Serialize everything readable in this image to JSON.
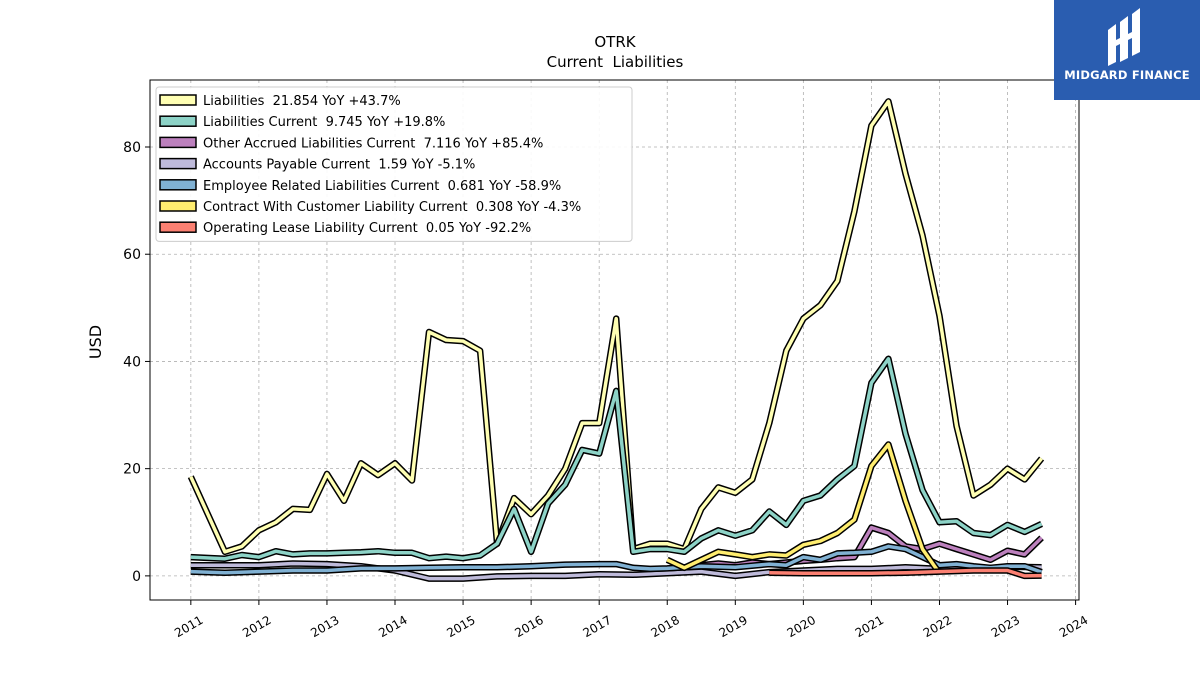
{
  "brand": {
    "name": "MIDGARD FINANCE",
    "bg_color": "#2a5db0"
  },
  "chart_data": {
    "type": "line",
    "title": "OTRK",
    "subtitle": "Current  Liabilities",
    "ylabel": "USD",
    "xlabel": "",
    "xlim": [
      2010.4,
      2024.05
    ],
    "ylim": [
      -4.5,
      92.5
    ],
    "yticks": [
      0,
      20,
      40,
      60,
      80
    ],
    "xticks": [
      2011,
      2012,
      2013,
      2014,
      2015,
      2016,
      2017,
      2018,
      2019,
      2020,
      2021,
      2022,
      2023,
      2024
    ],
    "grid": true,
    "legend_position": "top-left",
    "series": [
      {
        "name": "Liabilities",
        "legend": "Liabilities  21.854 YoY +43.7%",
        "color": "#ffffb3",
        "points": [
          [
            2011.0,
            18.5
          ],
          [
            2011.5,
            4.5
          ],
          [
            2011.75,
            5.5
          ],
          [
            2012.0,
            8.5
          ],
          [
            2012.25,
            10
          ],
          [
            2012.5,
            12.5
          ],
          [
            2012.75,
            12.3
          ],
          [
            2013.0,
            19
          ],
          [
            2013.25,
            14
          ],
          [
            2013.5,
            21
          ],
          [
            2013.75,
            18.8
          ],
          [
            2014.0,
            21
          ],
          [
            2014.25,
            17.8
          ],
          [
            2014.5,
            45.5
          ],
          [
            2014.75,
            44
          ],
          [
            2015.0,
            43.8
          ],
          [
            2015.25,
            42
          ],
          [
            2015.5,
            6
          ],
          [
            2015.75,
            14.5
          ],
          [
            2016.0,
            11.5
          ],
          [
            2016.25,
            15
          ],
          [
            2016.5,
            20
          ],
          [
            2016.75,
            28.5
          ],
          [
            2017.0,
            28.5
          ],
          [
            2017.25,
            48
          ],
          [
            2017.5,
            5
          ],
          [
            2017.75,
            6
          ],
          [
            2018.0,
            6
          ],
          [
            2018.25,
            5
          ],
          [
            2018.5,
            12.5
          ],
          [
            2018.75,
            16.5
          ],
          [
            2019.0,
            15.5
          ],
          [
            2019.25,
            18
          ],
          [
            2019.5,
            28.5
          ],
          [
            2019.75,
            42
          ],
          [
            2020.0,
            48
          ],
          [
            2020.25,
            50.5
          ],
          [
            2020.5,
            55
          ],
          [
            2020.75,
            68
          ],
          [
            2021.0,
            84
          ],
          [
            2021.25,
            88.5
          ],
          [
            2021.5,
            75
          ],
          [
            2021.75,
            63.5
          ],
          [
            2022.0,
            48.5
          ],
          [
            2022.25,
            28
          ],
          [
            2022.5,
            15
          ],
          [
            2022.75,
            17
          ],
          [
            2023.0,
            20
          ],
          [
            2023.25,
            18
          ],
          [
            2023.5,
            21.9
          ]
        ]
      },
      {
        "name": "Liabilities Current",
        "legend": "Liabilities Current  9.745 YoY +19.8%",
        "color": "#8dd3c7",
        "points": [
          [
            2011.0,
            3.5
          ],
          [
            2011.5,
            3.2
          ],
          [
            2011.75,
            3.9
          ],
          [
            2012.0,
            3.5
          ],
          [
            2012.25,
            4.6
          ],
          [
            2012.5,
            4
          ],
          [
            2012.75,
            4.2
          ],
          [
            2013.0,
            4.2
          ],
          [
            2013.25,
            4.3
          ],
          [
            2013.5,
            4.4
          ],
          [
            2013.75,
            4.6
          ],
          [
            2014.0,
            4.3
          ],
          [
            2014.25,
            4.3
          ],
          [
            2014.5,
            3.3
          ],
          [
            2014.75,
            3.6
          ],
          [
            2015.0,
            3.3
          ],
          [
            2015.25,
            3.8
          ],
          [
            2015.5,
            6
          ],
          [
            2015.75,
            12.5
          ],
          [
            2016.0,
            4.5
          ],
          [
            2016.25,
            13.5
          ],
          [
            2016.5,
            17
          ],
          [
            2016.75,
            23.5
          ],
          [
            2017.0,
            22.8
          ],
          [
            2017.25,
            34.5
          ],
          [
            2017.5,
            4.5
          ],
          [
            2017.75,
            5
          ],
          [
            2018.0,
            5
          ],
          [
            2018.25,
            4.5
          ],
          [
            2018.5,
            7
          ],
          [
            2018.75,
            8.5
          ],
          [
            2019.0,
            7.5
          ],
          [
            2019.25,
            8.5
          ],
          [
            2019.5,
            12
          ],
          [
            2019.75,
            9.5
          ],
          [
            2020.0,
            14
          ],
          [
            2020.25,
            15
          ],
          [
            2020.5,
            18
          ],
          [
            2020.75,
            20.5
          ],
          [
            2021.0,
            36
          ],
          [
            2021.25,
            40.5
          ],
          [
            2021.5,
            26.5
          ],
          [
            2021.75,
            16
          ],
          [
            2022.0,
            10
          ],
          [
            2022.25,
            10.2
          ],
          [
            2022.5,
            8
          ],
          [
            2022.75,
            7.6
          ],
          [
            2023.0,
            9.5
          ],
          [
            2023.25,
            8.2
          ],
          [
            2023.5,
            9.7
          ]
        ]
      },
      {
        "name": "Other Accrued Liabilities Current",
        "legend": "Other Accrued Liabilities Current  7.116 YoY +85.4%",
        "color": "#bc80bd",
        "points": [
          [
            2018.25,
            1.5
          ],
          [
            2018.5,
            2
          ],
          [
            2018.75,
            2.3
          ],
          [
            2019.0,
            2
          ],
          [
            2019.25,
            2.5
          ],
          [
            2019.5,
            2.2
          ],
          [
            2019.75,
            2.5
          ],
          [
            2020.0,
            2.8
          ],
          [
            2020.25,
            3
          ],
          [
            2020.5,
            3.3
          ],
          [
            2020.75,
            3.5
          ],
          [
            2021.0,
            9
          ],
          [
            2021.25,
            8
          ],
          [
            2021.5,
            5.5
          ],
          [
            2021.75,
            5
          ],
          [
            2022.0,
            6
          ],
          [
            2022.25,
            5
          ],
          [
            2022.5,
            4
          ],
          [
            2022.75,
            3
          ],
          [
            2023.0,
            4.7
          ],
          [
            2023.25,
            4
          ],
          [
            2023.5,
            7.1
          ]
        ]
      },
      {
        "name": "Accounts Payable Current",
        "legend": "Accounts Payable Current  1.59 YoY -5.1%",
        "color": "#bebada",
        "points": [
          [
            2011.0,
            2
          ],
          [
            2011.5,
            2
          ],
          [
            2012.0,
            2
          ],
          [
            2012.5,
            2.3
          ],
          [
            2013.0,
            2.2
          ],
          [
            2013.5,
            1.8
          ],
          [
            2014.0,
            1
          ],
          [
            2014.5,
            -0.5
          ],
          [
            2015.0,
            -0.5
          ],
          [
            2015.5,
            -0.1
          ],
          [
            2016.0,
            0
          ],
          [
            2016.5,
            0
          ],
          [
            2017.0,
            0.3
          ],
          [
            2017.5,
            0.2
          ],
          [
            2018.0,
            0.5
          ],
          [
            2018.5,
            0.8
          ],
          [
            2019.0,
            0
          ],
          [
            2019.5,
            0.7
          ],
          [
            2020.0,
            1
          ],
          [
            2020.5,
            1.3
          ],
          [
            2021.0,
            1.3
          ],
          [
            2021.5,
            1.6
          ],
          [
            2022.0,
            1.3
          ],
          [
            2022.5,
            1.2
          ],
          [
            2023.0,
            1.7
          ],
          [
            2023.5,
            1.6
          ]
        ]
      },
      {
        "name": "Employee Related Liabilities Current",
        "legend": "Employee Related Liabilities Current  0.681 YoY -58.9%",
        "color": "#80b1d3",
        "points": [
          [
            2011.0,
            0.8
          ],
          [
            2011.5,
            0.6
          ],
          [
            2012.0,
            0.8
          ],
          [
            2012.5,
            1
          ],
          [
            2013.0,
            1
          ],
          [
            2013.5,
            1.4
          ],
          [
            2014.0,
            1.4
          ],
          [
            2014.5,
            1.5
          ],
          [
            2015.0,
            1.6
          ],
          [
            2015.5,
            1.6
          ],
          [
            2016.0,
            1.8
          ],
          [
            2016.5,
            2.1
          ],
          [
            2017.0,
            2.2
          ],
          [
            2017.25,
            2.2
          ],
          [
            2017.5,
            1.5
          ],
          [
            2017.75,
            1.3
          ],
          [
            2018.0,
            1.4
          ],
          [
            2018.5,
            1.8
          ],
          [
            2019.0,
            1.6
          ],
          [
            2019.5,
            2.2
          ],
          [
            2019.75,
            2
          ],
          [
            2020.0,
            3.5
          ],
          [
            2020.25,
            3
          ],
          [
            2020.5,
            4.2
          ],
          [
            2020.75,
            4.3
          ],
          [
            2021.0,
            4.5
          ],
          [
            2021.25,
            5.5
          ],
          [
            2021.5,
            5
          ],
          [
            2021.75,
            3.5
          ],
          [
            2022.0,
            2
          ],
          [
            2022.25,
            2.2
          ],
          [
            2022.5,
            1.8
          ],
          [
            2022.75,
            1.5
          ],
          [
            2023.0,
            1.8
          ],
          [
            2023.25,
            1.8
          ],
          [
            2023.5,
            0.7
          ]
        ]
      },
      {
        "name": "Contract With Customer Liability Current",
        "legend": "Contract With Customer Liability Current  0.308 YoY -4.3%",
        "color": "#ffed6f",
        "points": [
          [
            2018.0,
            3
          ],
          [
            2018.25,
            1.5
          ],
          [
            2018.5,
            3
          ],
          [
            2018.75,
            4.5
          ],
          [
            2019.0,
            4
          ],
          [
            2019.25,
            3.5
          ],
          [
            2019.5,
            4
          ],
          [
            2019.75,
            3.8
          ],
          [
            2020.0,
            5.8
          ],
          [
            2020.25,
            6.5
          ],
          [
            2020.5,
            8
          ],
          [
            2020.75,
            10.5
          ],
          [
            2021.0,
            20.5
          ],
          [
            2021.25,
            24.5
          ],
          [
            2021.5,
            14
          ],
          [
            2021.75,
            5
          ],
          [
            2022.0,
            0.5
          ]
        ]
      },
      {
        "name": "Operating Lease Liability Current",
        "legend": "Operating Lease Liability Current  0.05 YoY -92.2%",
        "color": "#fb8072",
        "points": [
          [
            2019.5,
            0.6
          ],
          [
            2020.0,
            0.5
          ],
          [
            2020.5,
            0.5
          ],
          [
            2021.0,
            0.5
          ],
          [
            2021.5,
            0.6
          ],
          [
            2022.0,
            0.8
          ],
          [
            2022.5,
            1
          ],
          [
            2023.0,
            1
          ],
          [
            2023.25,
            0
          ],
          [
            2023.5,
            0.05
          ]
        ]
      }
    ]
  }
}
